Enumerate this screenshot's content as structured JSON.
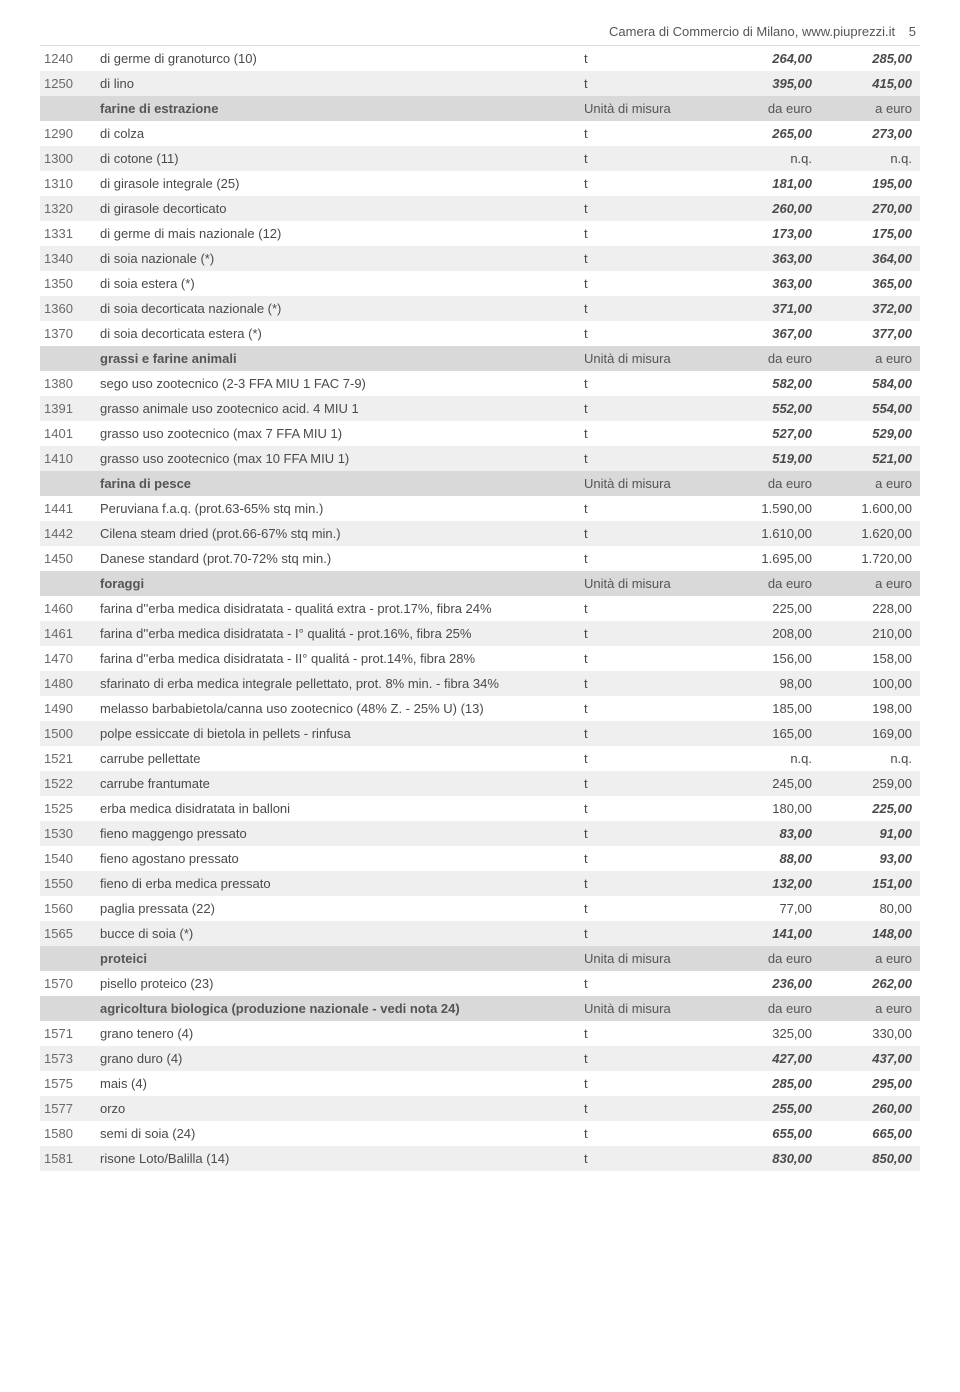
{
  "header": {
    "source": "Camera di Commercio di Milano, www.piuprezzi.it",
    "page_num": "5"
  },
  "colors": {
    "row_white": "#ffffff",
    "row_grey": "#efefef",
    "row_section": "#d9d9d9",
    "text": "#4a4a4a"
  },
  "column_labels": {
    "unit": "Unità di misura",
    "unit_alt": "Unita di misura",
    "from": "da euro",
    "to": "a euro"
  },
  "rows": [
    {
      "type": "data",
      "shade": "white",
      "code": "1240",
      "desc": "di germe di granoturco (10)",
      "unit": "t",
      "from": "264,00",
      "to": "285,00",
      "bold_from": true,
      "bold_to": true
    },
    {
      "type": "data",
      "shade": "grey",
      "code": "1250",
      "desc": "di lino",
      "unit": "t",
      "from": "395,00",
      "to": "415,00",
      "bold_from": true,
      "bold_to": true
    },
    {
      "type": "section",
      "title": "farine di estrazione",
      "unit_label": "Unità di misura",
      "from_label": "da euro",
      "to_label": "a euro"
    },
    {
      "type": "data",
      "shade": "white",
      "code": "1290",
      "desc": "di colza",
      "unit": "t",
      "from": "265,00",
      "to": "273,00",
      "bold_from": true,
      "bold_to": true
    },
    {
      "type": "data",
      "shade": "grey",
      "code": "1300",
      "desc": "di cotone (11)",
      "unit": "t",
      "from": "n.q.",
      "to": "n.q."
    },
    {
      "type": "data",
      "shade": "white",
      "code": "1310",
      "desc": "di girasole integrale (25)",
      "unit": "t",
      "from": "181,00",
      "to": "195,00",
      "bold_from": true,
      "bold_to": true
    },
    {
      "type": "data",
      "shade": "grey",
      "code": "1320",
      "desc": "di girasole decorticato",
      "unit": "t",
      "from": "260,00",
      "to": "270,00",
      "bold_from": true,
      "bold_to": true
    },
    {
      "type": "data",
      "shade": "white",
      "code": "1331",
      "desc": "di germe di mais nazionale (12)",
      "unit": "t",
      "from": "173,00",
      "to": "175,00",
      "bold_from": true,
      "bold_to": true
    },
    {
      "type": "data",
      "shade": "grey",
      "code": "1340",
      "desc": "di soia nazionale (*)",
      "unit": "t",
      "from": "363,00",
      "to": "364,00",
      "bold_from": true,
      "bold_to": true
    },
    {
      "type": "data",
      "shade": "white",
      "code": "1350",
      "desc": "di soia estera (*)",
      "unit": "t",
      "from": "363,00",
      "to": "365,00",
      "bold_from": true,
      "bold_to": true
    },
    {
      "type": "data",
      "shade": "grey",
      "code": "1360",
      "desc": "di soia decorticata nazionale (*)",
      "unit": "t",
      "from": "371,00",
      "to": "372,00",
      "bold_from": true,
      "bold_to": true
    },
    {
      "type": "data",
      "shade": "white",
      "code": "1370",
      "desc": "di soia decorticata estera (*)",
      "unit": "t",
      "from": "367,00",
      "to": "377,00",
      "bold_from": true,
      "bold_to": true
    },
    {
      "type": "section",
      "title": "grassi e farine animali",
      "unit_label": "Unità di misura",
      "from_label": "da euro",
      "to_label": "a euro"
    },
    {
      "type": "data",
      "shade": "white",
      "code": "1380",
      "desc": "sego uso zootecnico (2-3 FFA MIU 1 FAC 7-9)",
      "unit": "t",
      "from": "582,00",
      "to": "584,00",
      "bold_from": true,
      "bold_to": true
    },
    {
      "type": "data",
      "shade": "grey",
      "code": "1391",
      "desc": "grasso animale uso zootecnico acid. 4 MIU 1",
      "unit": "t",
      "from": "552,00",
      "to": "554,00",
      "bold_from": true,
      "bold_to": true
    },
    {
      "type": "data",
      "shade": "white",
      "code": "1401",
      "desc": "grasso uso zootecnico (max 7 FFA MIU 1)",
      "unit": "t",
      "from": "527,00",
      "to": "529,00",
      "bold_from": true,
      "bold_to": true
    },
    {
      "type": "data",
      "shade": "grey",
      "code": "1410",
      "desc": "grasso uso zootecnico (max 10 FFA MIU 1)",
      "unit": "t",
      "from": "519,00",
      "to": "521,00",
      "bold_from": true,
      "bold_to": true
    },
    {
      "type": "section",
      "title": "farina di pesce",
      "unit_label": "Unità di misura",
      "from_label": "da euro",
      "to_label": "a euro"
    },
    {
      "type": "data",
      "shade": "white",
      "code": "1441",
      "desc": "Peruviana f.a.q. (prot.63-65% stq min.)",
      "unit": "t",
      "from": "1.590,00",
      "to": "1.600,00"
    },
    {
      "type": "data",
      "shade": "grey",
      "code": "1442",
      "desc": "Cilena steam dried (prot.66-67% stq min.)",
      "unit": "t",
      "from": "1.610,00",
      "to": "1.620,00"
    },
    {
      "type": "data",
      "shade": "white",
      "code": "1450",
      "desc": "Danese standard (prot.70-72% stq min.)",
      "unit": "t",
      "from": "1.695,00",
      "to": "1.720,00"
    },
    {
      "type": "section",
      "title": "foraggi",
      "unit_label": "Unità di misura",
      "from_label": "da euro",
      "to_label": "a euro"
    },
    {
      "type": "data",
      "shade": "white",
      "code": "1460",
      "desc": "farina d''erba medica disidratata - qualitá extra - prot.17%, fibra 24%",
      "unit": "t",
      "from": "225,00",
      "to": "228,00"
    },
    {
      "type": "data",
      "shade": "grey",
      "code": "1461",
      "desc": "farina d''erba medica disidratata - I° qualitá - prot.16%, fibra 25%",
      "unit": "t",
      "from": "208,00",
      "to": "210,00"
    },
    {
      "type": "data",
      "shade": "white",
      "code": "1470",
      "desc": "farina d''erba medica disidratata - II° qualitá - prot.14%, fibra 28%",
      "unit": "t",
      "from": "156,00",
      "to": "158,00"
    },
    {
      "type": "data",
      "shade": "grey",
      "code": "1480",
      "desc": "sfarinato di erba medica integrale pellettato, prot. 8% min. - fibra 34%",
      "unit": "t",
      "from": "98,00",
      "to": "100,00"
    },
    {
      "type": "data",
      "shade": "white",
      "code": "1490",
      "desc": "melasso barbabietola/canna uso zootecnico (48% Z. - 25% U) (13)",
      "unit": "t",
      "from": "185,00",
      "to": "198,00"
    },
    {
      "type": "data",
      "shade": "grey",
      "code": "1500",
      "desc": "polpe essiccate di bietola in pellets - rinfusa",
      "unit": "t",
      "from": "165,00",
      "to": "169,00"
    },
    {
      "type": "data",
      "shade": "white",
      "code": "1521",
      "desc": "carrube pellettate",
      "unit": "t",
      "from": "n.q.",
      "to": "n.q."
    },
    {
      "type": "data",
      "shade": "grey",
      "code": "1522",
      "desc": "carrube frantumate",
      "unit": "t",
      "from": "245,00",
      "to": "259,00"
    },
    {
      "type": "data",
      "shade": "white",
      "code": "1525",
      "desc": "erba medica disidratata in balloni",
      "unit": "t",
      "from": "180,00",
      "to": "225,00",
      "bold_to": true
    },
    {
      "type": "data",
      "shade": "grey",
      "code": "1530",
      "desc": "fieno maggengo pressato",
      "unit": "t",
      "from": "83,00",
      "to": "91,00",
      "bold_from": true,
      "bold_to": true
    },
    {
      "type": "data",
      "shade": "white",
      "code": "1540",
      "desc": "fieno agostano pressato",
      "unit": "t",
      "from": "88,00",
      "to": "93,00",
      "bold_from": true,
      "bold_to": true
    },
    {
      "type": "data",
      "shade": "grey",
      "code": "1550",
      "desc": "fieno di erba medica pressato",
      "unit": "t",
      "from": "132,00",
      "to": "151,00",
      "bold_from": true,
      "bold_to": true
    },
    {
      "type": "data",
      "shade": "white",
      "code": "1560",
      "desc": "paglia pressata (22)",
      "unit": "t",
      "from": "77,00",
      "to": "80,00"
    },
    {
      "type": "data",
      "shade": "grey",
      "code": "1565",
      "desc": "bucce di soia (*)",
      "unit": "t",
      "from": "141,00",
      "to": "148,00",
      "bold_from": true,
      "bold_to": true
    },
    {
      "type": "section",
      "title": "proteici",
      "unit_label": "Unita di misura",
      "from_label": "da euro",
      "to_label": "a euro"
    },
    {
      "type": "data",
      "shade": "white",
      "code": "1570",
      "desc": "pisello proteico (23)",
      "unit": "t",
      "from": "236,00",
      "to": "262,00",
      "bold_from": true,
      "bold_to": true
    },
    {
      "type": "section",
      "title": "agricoltura biologica (produzione nazionale - vedi nota 24)",
      "unit_label": "Unità di misura",
      "from_label": "da euro",
      "to_label": "a euro"
    },
    {
      "type": "data",
      "shade": "white",
      "code": "1571",
      "desc": "grano tenero (4)",
      "unit": "t",
      "from": "325,00",
      "to": "330,00"
    },
    {
      "type": "data",
      "shade": "grey",
      "code": "1573",
      "desc": "grano duro (4)",
      "unit": "t",
      "from": "427,00",
      "to": "437,00",
      "bold_from": true,
      "bold_to": true
    },
    {
      "type": "data",
      "shade": "white",
      "code": "1575",
      "desc": "mais (4)",
      "unit": "t",
      "from": "285,00",
      "to": "295,00",
      "bold_from": true,
      "bold_to": true
    },
    {
      "type": "data",
      "shade": "grey",
      "code": "1577",
      "desc": "orzo",
      "unit": "t",
      "from": "255,00",
      "to": "260,00",
      "bold_from": true,
      "bold_to": true
    },
    {
      "type": "data",
      "shade": "white",
      "code": "1580",
      "desc": "semi di soia (24)",
      "unit": "t",
      "from": "655,00",
      "to": "665,00",
      "bold_from": true,
      "bold_to": true
    },
    {
      "type": "data",
      "shade": "grey",
      "code": "1581",
      "desc": "risone Loto/Balilla (14)",
      "unit": "t",
      "from": "830,00",
      "to": "850,00",
      "bold_from": true,
      "bold_to": true
    }
  ]
}
